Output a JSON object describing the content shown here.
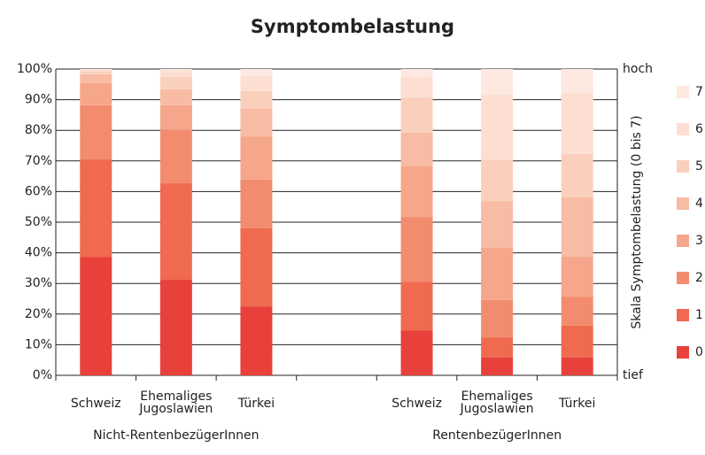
{
  "chart_data": {
    "type": "stacked_bar",
    "title": "Symptombelastung",
    "categories": [
      "Schweiz",
      "Ehemaliges Jugoslawien",
      "Türkei",
      null,
      "Schweiz",
      "Ehemaliges Jugoslawien",
      "Türkei"
    ],
    "groups": [
      "Nicht-RentenbezügerInnen",
      "RentenbezügerInnen"
    ],
    "y2_label": "Skala Symptombelastung (0 bis 7)",
    "y2_top_label": "hoch",
    "y2_bottom_label": "tief",
    "ylim": [
      0,
      100
    ],
    "yticks": [
      {
        "value": 0,
        "label": "0%"
      },
      {
        "value": 10,
        "label": "10%"
      },
      {
        "value": 20,
        "label": "20%"
      },
      {
        "value": 30,
        "label": "30%"
      },
      {
        "value": 40,
        "label": "40%"
      },
      {
        "value": 50,
        "label": "50%"
      },
      {
        "value": 60,
        "label": "60%"
      },
      {
        "value": 70,
        "label": "70%"
      },
      {
        "value": 80,
        "label": "80%"
      },
      {
        "value": 90,
        "label": "90%"
      },
      {
        "value": 100,
        "label": "100%"
      }
    ],
    "grid": true,
    "series": [
      {
        "name": "0",
        "color": "#e8403a",
        "values": [
          38.7,
          31.2,
          22.5,
          null,
          14.7,
          5.8,
          5.8
        ]
      },
      {
        "name": "1",
        "color": "#ef6a4f",
        "values": [
          31.8,
          31.5,
          25.5,
          null,
          15.9,
          6.6,
          10.4
        ]
      },
      {
        "name": "2",
        "color": "#f38c6f",
        "values": [
          17.7,
          17.6,
          15.9,
          null,
          21.1,
          12.2,
          9.5
        ]
      },
      {
        "name": "3",
        "color": "#f6a68a",
        "values": [
          7.2,
          7.9,
          14.1,
          null,
          16.5,
          17.0,
          13.0
        ]
      },
      {
        "name": "4",
        "color": "#f8bba3",
        "values": [
          2.9,
          5.2,
          9.0,
          null,
          11.0,
          15.3,
          19.4
        ]
      },
      {
        "name": "5",
        "color": "#fad0bd",
        "values": [
          1.0,
          4.0,
          5.8,
          null,
          11.6,
          13.6,
          14.2
        ]
      },
      {
        "name": "6",
        "color": "#fcdfd2",
        "values": [
          0.4,
          2.0,
          4.9,
          null,
          6.6,
          21.1,
          19.9
        ]
      },
      {
        "name": "7",
        "color": "#fde9e0",
        "values": [
          0.3,
          0.6,
          2.3,
          null,
          2.6,
          8.4,
          7.8
        ]
      }
    ]
  }
}
